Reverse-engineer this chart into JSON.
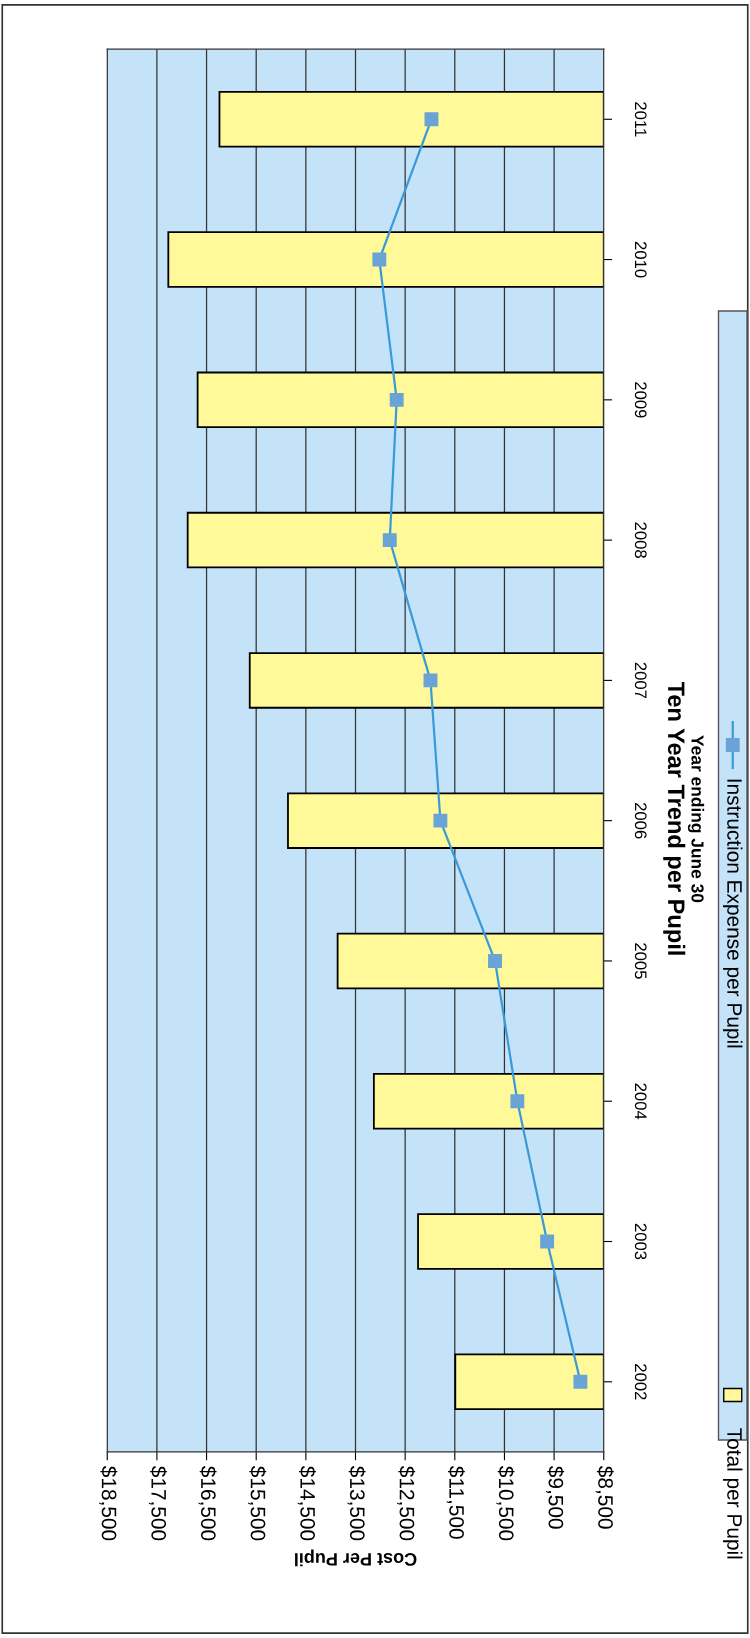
{
  "chart_data": {
    "type": "bar",
    "orientation": "horizontal",
    "title": "Ten Year Trend per Pupil",
    "subtitle": "Year ending June 30",
    "xlabel": "Cost Per Pupil",
    "categories": [
      "2011",
      "2010",
      "2009",
      "2008",
      "2007",
      "2006",
      "2005",
      "2004",
      "2003",
      "2002"
    ],
    "series": [
      {
        "name": "Total per Pupil",
        "color": "#fff99a",
        "values": [
          16240,
          17270,
          16680,
          16880,
          15630,
          14860,
          13860,
          13130,
          12240,
          11490
        ]
      },
      {
        "name": "Instruction Expense per Pupil",
        "type": "line",
        "color": "#3a9ad9",
        "values": [
          11970,
          13020,
          12670,
          12810,
          11990,
          11790,
          10690,
          10240,
          9640,
          8970
        ]
      }
    ],
    "xlim": [
      18500,
      8500
    ],
    "xticks": [
      {
        "value": 18500,
        "label": "$18,500"
      },
      {
        "value": 17500,
        "label": "$17,500"
      },
      {
        "value": 16500,
        "label": "$16,500"
      },
      {
        "value": 15500,
        "label": "$15,500"
      },
      {
        "value": 14500,
        "label": "$14,500"
      },
      {
        "value": 13500,
        "label": "$13,500"
      },
      {
        "value": 12500,
        "label": "$12,500"
      },
      {
        "value": 11500,
        "label": "$11,500"
      },
      {
        "value": 10500,
        "label": "$10,500"
      },
      {
        "value": 9500,
        "label": "$9,500"
      },
      {
        "value": 8500,
        "label": "$8,500"
      }
    ],
    "grid": "x",
    "legend": "right",
    "marker": "square",
    "line_style": "solid"
  }
}
